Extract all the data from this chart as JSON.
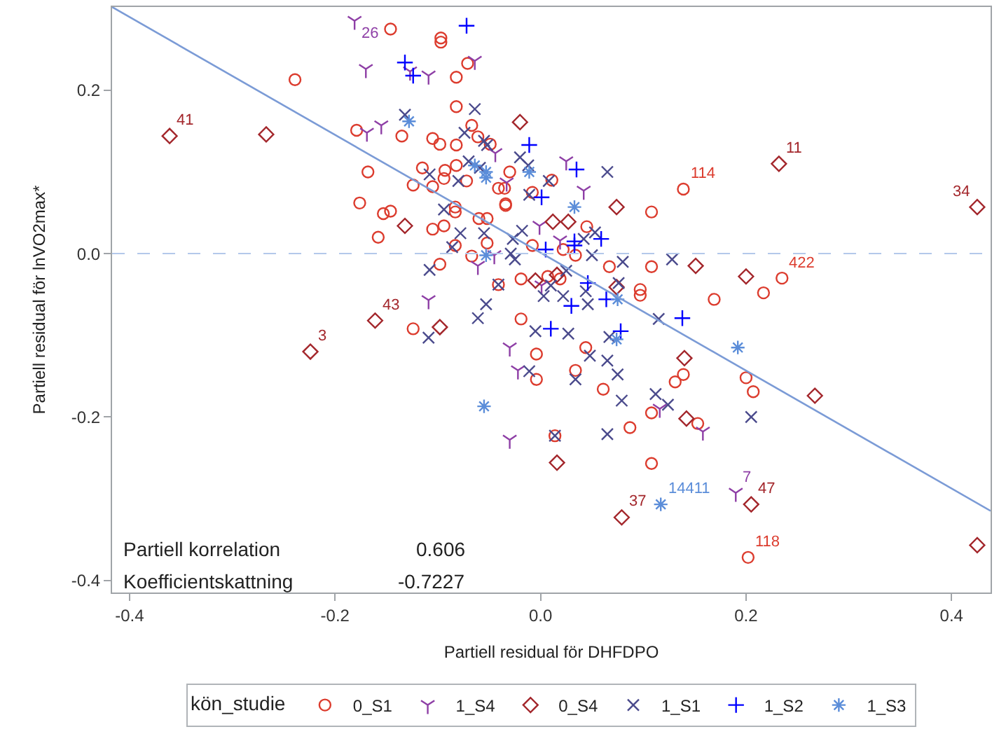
{
  "chart_data": {
    "type": "scatter",
    "xlabel": "Partiell residual för DHFDPO",
    "ylabel": "Partiell residual för lnVO2max*",
    "legend_title": "kön_studie",
    "xlim": [
      -0.417,
      0.438
    ],
    "ylim": [
      -0.415,
      0.302
    ],
    "xticks": [
      -0.4,
      -0.2,
      {
        "value": 0,
        "label": "0.0"
      },
      0.2,
      0.4
    ],
    "yticks": [
      -0.4,
      -0.2,
      {
        "value": 0,
        "label": "0.0"
      },
      0.2
    ],
    "legend": "bottom",
    "ref_lines": [
      {
        "axis": "y",
        "value": 0,
        "color": "#b4c8ea",
        "line_style": "dashed"
      }
    ],
    "series": [
      {
        "name": "0_S1",
        "color": "#dc3c2e",
        "marker": "circle",
        "x": [
          -0.146,
          -0.239,
          -0.179,
          -0.135,
          -0.168,
          -0.176,
          -0.153,
          -0.146,
          -0.158,
          -0.097,
          -0.097,
          -0.071,
          -0.082,
          -0.082,
          -0.067,
          -0.061,
          -0.105,
          -0.098,
          -0.082,
          -0.049,
          -0.082,
          -0.115,
          -0.093,
          -0.094,
          -0.072,
          -0.03,
          -0.124,
          -0.105,
          -0.041,
          -0.035,
          -0.034,
          -0.034,
          -0.008,
          0.011,
          0.108,
          0.139,
          -0.083,
          -0.083,
          -0.06,
          -0.052,
          0.045,
          -0.105,
          -0.094,
          -0.083,
          -0.052,
          -0.008,
          0.022,
          -0.067,
          0.034,
          -0.098,
          0.108,
          0.067,
          -0.041,
          -0.019,
          0.007,
          0.019,
          0.097,
          0.097,
          -0.019,
          -0.124,
          0.044,
          -0.004,
          -0.004,
          0.034,
          0.061,
          0.139,
          0.131,
          0.108,
          0.153,
          0.014,
          0.087,
          0.108,
          0.235,
          0.217,
          0.169,
          0.2,
          0.207,
          0.202
        ],
        "values": [
          0.275,
          0.213,
          0.151,
          0.144,
          0.1,
          0.062,
          0.049,
          0.052,
          0.02,
          0.264,
          0.259,
          0.233,
          0.216,
          0.18,
          0.157,
          0.143,
          0.141,
          0.134,
          0.133,
          0.134,
          0.108,
          0.105,
          0.102,
          0.092,
          0.089,
          0.1,
          0.084,
          0.082,
          0.08,
          0.08,
          0.061,
          0.059,
          0.075,
          0.09,
          0.051,
          0.079,
          0.057,
          0.051,
          0.043,
          0.043,
          0.033,
          0.03,
          0.034,
          0.01,
          0.013,
          0.01,
          0.005,
          -0.003,
          -0.002,
          -0.013,
          -0.016,
          -0.016,
          -0.038,
          -0.031,
          -0.028,
          -0.031,
          -0.044,
          -0.051,
          -0.08,
          -0.092,
          -0.115,
          -0.123,
          -0.154,
          -0.143,
          -0.166,
          -0.148,
          -0.157,
          -0.195,
          -0.208,
          -0.223,
          -0.213,
          -0.257,
          -0.03,
          -0.048,
          -0.056,
          -0.152,
          -0.169,
          -0.372
        ]
      },
      {
        "name": "1_S4",
        "color": "#8e3fa6",
        "marker": "cross",
        "x": [
          -0.181,
          -0.17,
          -0.169,
          -0.155,
          -0.127,
          -0.109,
          -0.064,
          -0.044,
          -0.033,
          0.025,
          0.042,
          -0.001,
          0.019,
          -0.045,
          -0.061,
          0.001,
          -0.109,
          -0.03,
          -0.022,
          0.116,
          -0.03,
          0.158,
          0.19
        ],
        "values": [
          0.285,
          0.226,
          0.148,
          0.157,
          0.223,
          0.218,
          0.236,
          0.123,
          0.087,
          0.113,
          0.077,
          0.034,
          0.016,
          -0.002,
          -0.015,
          -0.039,
          -0.057,
          -0.115,
          -0.143,
          -0.19,
          -0.228,
          -0.218,
          -0.293
        ]
      },
      {
        "name": "0_S4",
        "color": "#a3262b",
        "marker": "diamond",
        "x": [
          -0.361,
          -0.267,
          -0.132,
          -0.02,
          0.074,
          0.012,
          0.027,
          0.151,
          0.232,
          0.425,
          -0.005,
          0.016,
          0.074,
          -0.098,
          0.14,
          0.142,
          0.016,
          0.079,
          0.2,
          0.267,
          0.205,
          0.425,
          -0.161,
          -0.224
        ],
        "values": [
          0.144,
          0.146,
          0.034,
          0.161,
          0.057,
          0.039,
          0.039,
          -0.015,
          0.11,
          0.057,
          -0.033,
          -0.026,
          -0.041,
          -0.09,
          -0.128,
          -0.202,
          -0.256,
          -0.323,
          -0.028,
          -0.174,
          -0.307,
          -0.357,
          -0.082,
          -0.12
        ]
      },
      {
        "name": "1_S1",
        "color": "#4a4a8c",
        "marker": "x",
        "x": [
          -0.132,
          -0.064,
          -0.074,
          -0.055,
          -0.052,
          -0.02,
          -0.012,
          -0.07,
          -0.059,
          -0.108,
          -0.08,
          -0.011,
          0.008,
          0.065,
          -0.094,
          -0.078,
          -0.055,
          -0.018,
          -0.027,
          -0.086,
          0.053,
          0.042,
          -0.029,
          -0.025,
          0.05,
          0.08,
          0.128,
          -0.108,
          -0.041,
          0.025,
          0.01,
          0.003,
          0.022,
          0.044,
          0.046,
          0.076,
          0.115,
          -0.053,
          -0.061,
          -0.109,
          -0.005,
          0.027,
          0.067,
          0.048,
          -0.011,
          0.034,
          0.065,
          0.075,
          0.079,
          0.112,
          0.124,
          0.014,
          0.065,
          0.205
        ],
        "values": [
          0.17,
          0.177,
          0.148,
          0.138,
          0.133,
          0.118,
          0.108,
          0.113,
          0.105,
          0.097,
          0.089,
          0.072,
          0.089,
          0.1,
          0.054,
          0.025,
          0.025,
          0.028,
          0.018,
          0.008,
          0.026,
          0.018,
          0.0,
          -0.007,
          -0.002,
          -0.01,
          -0.007,
          -0.02,
          -0.038,
          -0.021,
          -0.039,
          -0.052,
          -0.052,
          -0.046,
          -0.062,
          -0.036,
          -0.08,
          -0.062,
          -0.079,
          -0.103,
          -0.095,
          -0.098,
          -0.102,
          -0.125,
          -0.144,
          -0.154,
          -0.131,
          -0.148,
          -0.18,
          -0.172,
          -0.185,
          -0.223,
          -0.221,
          -0.2
        ]
      },
      {
        "name": "1_S2",
        "color": "#0000ff",
        "marker": "cross",
        "x": [
          -0.072,
          -0.132,
          -0.124,
          -0.011,
          0.035,
          0.001,
          0.033,
          0.033,
          0.059,
          0.005,
          0.046,
          0.064,
          0.03,
          0.138,
          0.01,
          0.078
        ],
        "values": [
          0.279,
          0.234,
          0.218,
          0.133,
          0.103,
          0.069,
          0.015,
          0.01,
          0.018,
          0.005,
          -0.036,
          -0.056,
          -0.064,
          -0.079,
          -0.092,
          -0.095
        ]
      },
      {
        "name": "1_S3",
        "color": "#5b8dd9",
        "marker": "cross",
        "x": [
          -0.128,
          -0.011,
          -0.064,
          -0.053,
          -0.053,
          0.033,
          -0.053,
          0.075,
          0.074,
          -0.055,
          0.117,
          0.192
        ],
        "values": [
          0.162,
          0.1,
          0.108,
          0.1,
          0.093,
          0.057,
          -0.002,
          -0.056,
          -0.105,
          -0.187,
          -0.307,
          -0.115
        ]
      },
      {
        "type": "line",
        "color": "#7b9bd6",
        "marker": "none",
        "x": [
          -0.417,
          0.438
        ],
        "values": [
          0.302,
          -0.315
        ]
      }
    ],
    "annotations": [
      {
        "text": "26",
        "x": -0.181,
        "y": 0.285
      },
      {
        "text": "41",
        "x": -0.361,
        "y": 0.144
      },
      {
        "text": "43",
        "x": -0.161,
        "y": -0.082
      },
      {
        "text": "3",
        "x": -0.224,
        "y": -0.12
      },
      {
        "text": "114",
        "x": 0.139,
        "y": 0.079
      },
      {
        "text": "11",
        "x": 0.232,
        "y": 0.11
      },
      {
        "text": "34",
        "x": 0.425,
        "y": 0.057
      },
      {
        "text": "422",
        "x": 0.235,
        "y": -0.03
      },
      {
        "text": "14411",
        "x": 0.117,
        "y": -0.307
      },
      {
        "text": "7",
        "x": 0.19,
        "y": -0.293
      },
      {
        "text": "47",
        "x": 0.205,
        "y": -0.307
      },
      {
        "text": "37",
        "x": 0.079,
        "y": -0.323
      },
      {
        "text": "118",
        "x": 0.202,
        "y": -0.372
      },
      "Partiell korrelation",
      "0.606",
      "Koefficientskattning",
      "-0.7227"
    ]
  }
}
